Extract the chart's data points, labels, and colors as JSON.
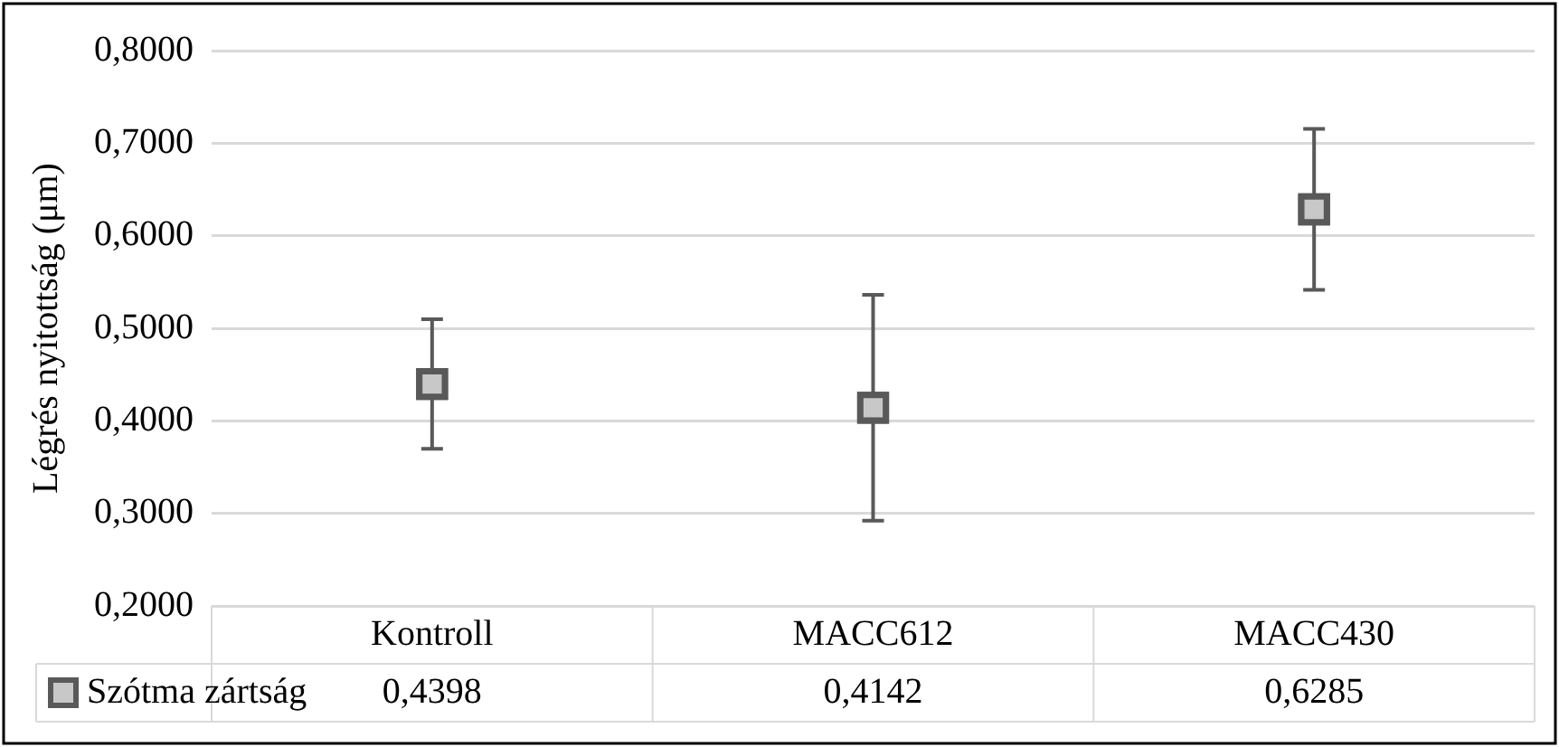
{
  "chart_data": {
    "type": "scatter",
    "ylabel": "Légrés nyitottság (μm)",
    "categories": [
      "Kontroll",
      "MACC612",
      "MACC430"
    ],
    "series": [
      {
        "name": "Szótma zártság",
        "color": "#595959",
        "values": [
          0.4398,
          0.4142,
          0.6285
        ],
        "errors": [
          0.07,
          0.122,
          0.087
        ],
        "value_labels": [
          "0,4398",
          "0,4142",
          "0,6285"
        ]
      }
    ],
    "ylim": [
      0.2,
      0.8
    ],
    "yticks": [
      {
        "value": 0.2,
        "label": "0,2000"
      },
      {
        "value": 0.3,
        "label": "0,3000"
      },
      {
        "value": 0.4,
        "label": "0,4000"
      },
      {
        "value": 0.5,
        "label": "0,5000"
      },
      {
        "value": 0.6,
        "label": "0,6000"
      },
      {
        "value": 0.7,
        "label": "0,7000"
      },
      {
        "value": 0.8,
        "label": "0,8000"
      }
    ],
    "grid": "y",
    "legend": "bottom",
    "marker": "square"
  }
}
